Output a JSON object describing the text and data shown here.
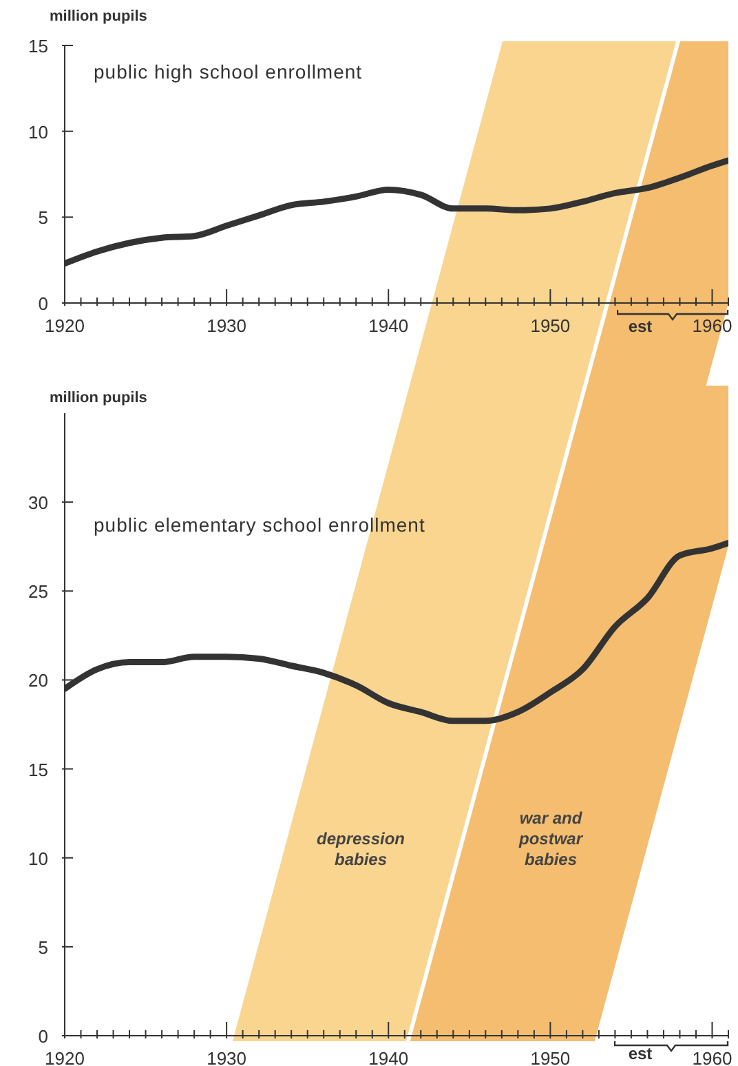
{
  "chart_data": [
    {
      "type": "line",
      "title": "public high school enrollment",
      "ylabel": "million pupils",
      "annotations": [
        "est"
      ],
      "x": [
        1920,
        1922,
        1924,
        1926,
        1928,
        1930,
        1932,
        1934,
        1936,
        1938,
        1940,
        1942,
        1944,
        1946,
        1948,
        1950,
        1952,
        1954,
        1956,
        1958,
        1960,
        1961
      ],
      "values": [
        2.3,
        3.0,
        3.5,
        3.8,
        3.9,
        4.5,
        5.1,
        5.7,
        5.9,
        6.2,
        6.6,
        6.3,
        5.5,
        5.5,
        5.4,
        5.5,
        5.9,
        6.4,
        6.7,
        7.3,
        8.0,
        8.3
      ],
      "color": "#333333",
      "line_style": "solid",
      "xlim": [
        1920,
        1961
      ],
      "ylim": [
        0,
        15
      ],
      "yticks": [
        0,
        5,
        10,
        15
      ],
      "xticks": [
        1920,
        {
          "value": 1921,
          "label": null
        },
        {
          "value": 1922,
          "label": null
        },
        {
          "value": 1923,
          "label": null
        },
        {
          "value": 1924,
          "label": null
        },
        {
          "value": 1925,
          "label": null
        },
        {
          "value": 1926,
          "label": null
        },
        {
          "value": 1927,
          "label": null
        },
        {
          "value": 1928,
          "label": null
        },
        {
          "value": 1929,
          "label": null
        },
        1930,
        {
          "value": 1931,
          "label": null
        },
        {
          "value": 1932,
          "label": null
        },
        {
          "value": 1933,
          "label": null
        },
        {
          "value": 1934,
          "label": null
        },
        {
          "value": 1935,
          "label": null
        },
        {
          "value": 1936,
          "label": null
        },
        {
          "value": 1937,
          "label": null
        },
        {
          "value": 1938,
          "label": null
        },
        {
          "value": 1939,
          "label": null
        },
        1940,
        {
          "value": 1941,
          "label": null
        },
        {
          "value": 1942,
          "label": null
        },
        {
          "value": 1943,
          "label": null
        },
        {
          "value": 1944,
          "label": null
        },
        {
          "value": 1945,
          "label": null
        },
        {
          "value": 1946,
          "label": null
        },
        {
          "value": 1947,
          "label": null
        },
        {
          "value": 1948,
          "label": null
        },
        {
          "value": 1949,
          "label": null
        },
        1950,
        {
          "value": 1951,
          "label": null
        },
        {
          "value": 1952,
          "label": null
        },
        {
          "value": 1953,
          "label": null
        },
        {
          "value": 1954,
          "label": null
        },
        {
          "value": 1955,
          "label": null
        },
        {
          "value": 1956,
          "label": null
        },
        {
          "value": 1957,
          "label": null
        },
        {
          "value": 1958,
          "label": null
        },
        {
          "value": 1959,
          "label": null
        },
        1960,
        {
          "value": 1961,
          "label": null
        }
      ]
    },
    {
      "type": "line",
      "title": "public elementary school enrollment",
      "ylabel": "million pupils",
      "annotations": [
        "est",
        "depression babies",
        "war and postwar babies"
      ],
      "x": [
        1920,
        1922,
        1924,
        1926,
        1928,
        1930,
        1932,
        1934,
        1936,
        1938,
        1940,
        1942,
        1944,
        1946,
        1948,
        1950,
        1952,
        1954,
        1956,
        1958,
        1960,
        1961
      ],
      "values": [
        19.5,
        20.6,
        21.0,
        21.0,
        21.3,
        21.3,
        21.2,
        20.8,
        20.4,
        19.7,
        18.7,
        18.2,
        17.7,
        17.7,
        18.2,
        19.3,
        20.6,
        23.0,
        24.6,
        27.0,
        27.4,
        27.7
      ],
      "color": "#333333",
      "line_style": "solid",
      "xlim": [
        1920,
        1961
      ],
      "ylim": [
        0,
        35
      ],
      "yticks": [
        0,
        5,
        10,
        15,
        20,
        25,
        30
      ],
      "xticks": [
        1920,
        {
          "value": 1921,
          "label": null
        },
        {
          "value": 1922,
          "label": null
        },
        {
          "value": 1923,
          "label": null
        },
        {
          "value": 1924,
          "label": null
        },
        {
          "value": 1925,
          "label": null
        },
        {
          "value": 1926,
          "label": null
        },
        {
          "value": 1927,
          "label": null
        },
        {
          "value": 1928,
          "label": null
        },
        {
          "value": 1929,
          "label": null
        },
        1930,
        {
          "value": 1931,
          "label": null
        },
        {
          "value": 1932,
          "label": null
        },
        {
          "value": 1933,
          "label": null
        },
        {
          "value": 1934,
          "label": null
        },
        {
          "value": 1935,
          "label": null
        },
        {
          "value": 1936,
          "label": null
        },
        {
          "value": 1937,
          "label": null
        },
        {
          "value": 1938,
          "label": null
        },
        {
          "value": 1939,
          "label": null
        },
        1940,
        {
          "value": 1941,
          "label": null
        },
        {
          "value": 1942,
          "label": null
        },
        {
          "value": 1943,
          "label": null
        },
        {
          "value": 1944,
          "label": null
        },
        {
          "value": 1945,
          "label": null
        },
        {
          "value": 1946,
          "label": null
        },
        {
          "value": 1947,
          "label": null
        },
        {
          "value": 1948,
          "label": null
        },
        {
          "value": 1949,
          "label": null
        },
        1950,
        {
          "value": 1951,
          "label": null
        },
        {
          "value": 1952,
          "label": null
        },
        {
          "value": 1953,
          "label": null
        },
        {
          "value": 1954,
          "label": null
        },
        {
          "value": 1955,
          "label": null
        },
        {
          "value": 1956,
          "label": null
        },
        {
          "value": 1957,
          "label": null
        },
        {
          "value": 1958,
          "label": null
        },
        {
          "value": 1959,
          "label": null
        },
        1960,
        {
          "value": 1961,
          "label": null
        }
      ]
    }
  ]
}
